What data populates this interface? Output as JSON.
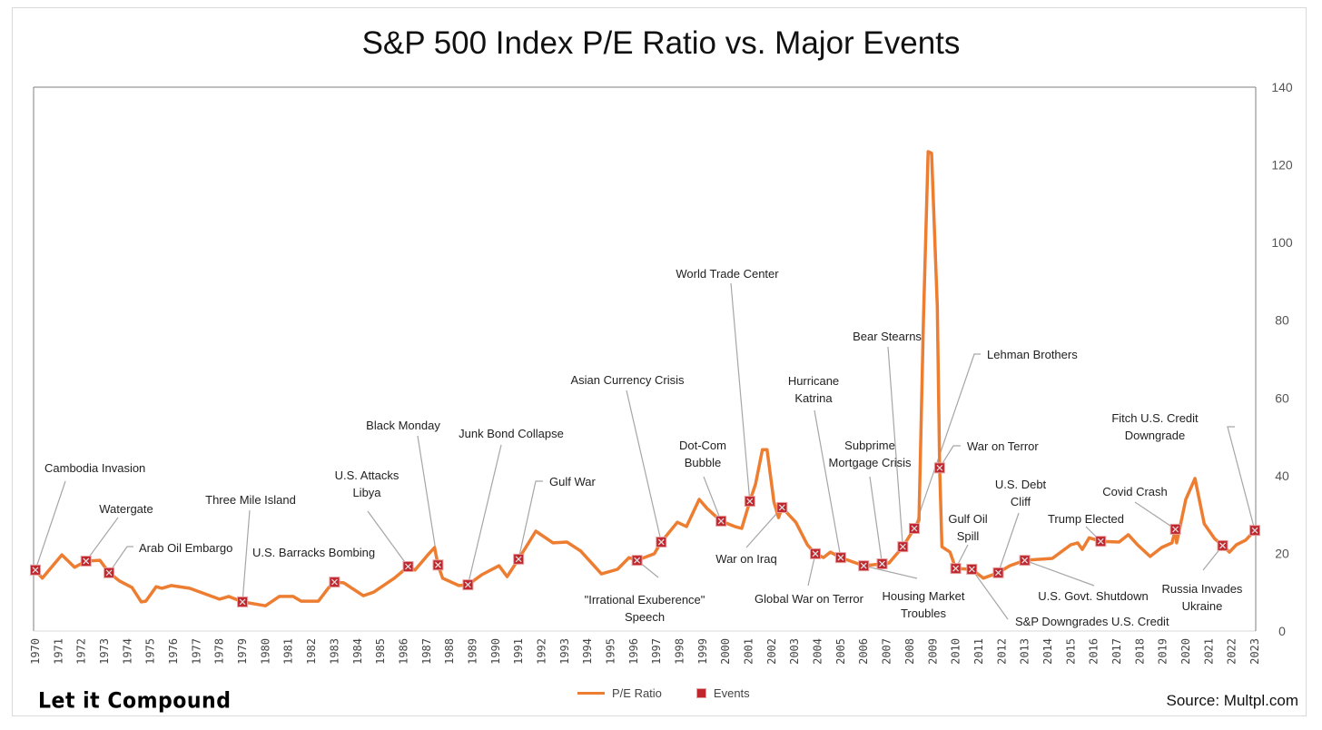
{
  "chart_data": {
    "type": "line",
    "title": "S&P 500 Index P/E Ratio vs. Major Events",
    "xlabel": "",
    "ylabel": "",
    "ylim": [
      0,
      140
    ],
    "yticks": [
      0,
      20,
      40,
      60,
      80,
      100,
      120,
      140
    ],
    "y_axis_side": "right",
    "x_tick_labels": [
      "1970",
      "1971",
      "1972",
      "1973",
      "1974",
      "1975",
      "1976",
      "1977",
      "1978",
      "1979",
      "1980",
      "1981",
      "1982",
      "1983",
      "1984",
      "1985",
      "1986",
      "1987",
      "1988",
      "1989",
      "1990",
      "1991",
      "1992",
      "1993",
      "1994",
      "1995",
      "1996",
      "1997",
      "1998",
      "1999",
      "2000",
      "2001",
      "2002",
      "2003",
      "2004",
      "2005",
      "2006",
      "2007",
      "2008",
      "2009",
      "2010",
      "2011",
      "2012",
      "2013",
      "2014",
      "2015",
      "2016",
      "2017",
      "2018",
      "2019",
      "2020",
      "2021",
      "2022",
      "2023"
    ],
    "legend": {
      "placement": "bottom",
      "entries": [
        "P/E Ratio",
        "Events"
      ]
    },
    "series": [
      {
        "name": "P/E Ratio",
        "color": "#ed7d31",
        "x": [
          1970.0,
          1970.3,
          1971.15,
          1971.7,
          1972.2,
          1972.8,
          1973.2,
          1973.65,
          1974.2,
          1974.6,
          1974.8,
          1975.25,
          1975.5,
          1975.9,
          1976.7,
          1978.0,
          1978.4,
          1979.0,
          1980.0,
          1980.6,
          1981.2,
          1981.55,
          1982.3,
          1982.75,
          1983.0,
          1983.4,
          1984.25,
          1984.7,
          1985.6,
          1986.2,
          1986.5,
          1987.1,
          1987.35,
          1987.5,
          1987.7,
          1988.4,
          1988.8,
          1989.4,
          1990.15,
          1990.5,
          1991.0,
          1991.75,
          1992.5,
          1993.1,
          1993.7,
          1994.6,
          1995.3,
          1995.8,
          1996.15,
          1996.9,
          1997.2,
          1997.9,
          1998.3,
          1998.85,
          1999.2,
          1999.8,
          2000.4,
          2000.7,
          2001.05,
          2001.3,
          2001.6,
          2001.8,
          2002.1,
          2002.3,
          2002.45,
          2003.05,
          2003.55,
          2003.9,
          2004.25,
          2004.55,
          2005.0,
          2006.0,
          2006.8,
          2007.1,
          2007.7,
          2008.2,
          2008.4,
          2008.6,
          2008.8,
          2008.95,
          2009.2,
          2009.3,
          2009.4,
          2009.75,
          2010.0,
          2010.7,
          2011.2,
          2011.85,
          2012.35,
          2013.0,
          2014.2,
          2015.0,
          2015.3,
          2015.5,
          2015.8,
          2016.3,
          2017.1,
          2017.5,
          2017.9,
          2018.45,
          2018.95,
          2019.4,
          2019.55,
          2019.6,
          2020.0,
          2020.4,
          2020.8,
          2021.25,
          2021.6,
          2021.9,
          2022.2,
          2022.6,
          2023.0
        ],
        "y": [
          15.7,
          13.6,
          19.6,
          16.4,
          18.0,
          18.2,
          15.0,
          12.9,
          11.2,
          7.5,
          7.7,
          11.4,
          11.0,
          11.7,
          11.0,
          8.2,
          8.9,
          7.5,
          6.5,
          8.9,
          8.9,
          7.7,
          7.7,
          11.2,
          12.6,
          12.4,
          9.1,
          10.0,
          13.6,
          16.6,
          15.7,
          19.9,
          21.5,
          17.0,
          13.6,
          11.7,
          11.9,
          14.5,
          16.8,
          14.0,
          18.5,
          25.7,
          22.7,
          22.9,
          20.6,
          14.7,
          15.9,
          18.9,
          18.2,
          19.9,
          22.9,
          28.0,
          26.9,
          33.9,
          31.5,
          28.3,
          26.9,
          26.4,
          33.4,
          37.8,
          46.7,
          46.7,
          33.2,
          29.2,
          31.8,
          28.0,
          22.2,
          19.9,
          18.9,
          20.3,
          18.9,
          16.8,
          17.3,
          17.5,
          21.7,
          26.4,
          28.5,
          80.6,
          123.4,
          123.0,
          83.6,
          42.0,
          21.7,
          20.3,
          16.1,
          15.9,
          13.6,
          15.0,
          16.8,
          18.2,
          18.7,
          22.2,
          22.7,
          21.0,
          24.0,
          23.1,
          22.9,
          24.8,
          22.2,
          19.2,
          21.5,
          22.7,
          26.2,
          22.7,
          33.9,
          39.3,
          27.6,
          23.8,
          22.0,
          20.3,
          22.2,
          23.4,
          25.9
        ]
      }
    ],
    "events_color": "#c0262d",
    "events": [
      {
        "label": [
          "Cambodia Invasion"
        ],
        "year": 1970.0,
        "pe": 15.7
      },
      {
        "label": [
          "Watergate"
        ],
        "year": 1972.2,
        "pe": 18.0
      },
      {
        "label": [
          "Arab Oil Embargo"
        ],
        "year": 1973.2,
        "pe": 15.0
      },
      {
        "label": [
          "Three Mile Island"
        ],
        "year": 1979.0,
        "pe": 7.5
      },
      {
        "label": [
          "U.S. Barracks Bombing"
        ],
        "year": 1983.0,
        "pe": 12.6
      },
      {
        "label": [
          "U.S. Attacks",
          "Libya"
        ],
        "year": 1986.2,
        "pe": 16.6
      },
      {
        "label": [
          "Black Monday"
        ],
        "year": 1987.5,
        "pe": 17.0
      },
      {
        "label": [
          "Junk Bond Collapse"
        ],
        "year": 1988.8,
        "pe": 11.9
      },
      {
        "label": [
          "Gulf War"
        ],
        "year": 1991.0,
        "pe": 18.5
      },
      {
        "label": [
          "Asian Currency Crisis"
        ],
        "year": 1997.2,
        "pe": 22.9
      },
      {
        "label": [
          "\"Irrational Exuberence\"",
          "Speech"
        ],
        "year": 1996.15,
        "pe": 18.2
      },
      {
        "label": [
          "Dot-Com",
          "Bubble"
        ],
        "year": 1999.8,
        "pe": 28.3
      },
      {
        "label": [
          "World Trade Center"
        ],
        "year": 2001.05,
        "pe": 33.4
      },
      {
        "label": [
          "War on Iraq"
        ],
        "year": 2002.45,
        "pe": 31.8
      },
      {
        "label": [
          "Global War on Terror"
        ],
        "year": 2003.9,
        "pe": 19.9
      },
      {
        "label": [
          "Hurricane",
          "Katrina"
        ],
        "year": 2005.0,
        "pe": 18.9
      },
      {
        "label": [
          "Housing Market",
          "Troubles"
        ],
        "year": 2006.0,
        "pe": 16.8
      },
      {
        "label": [
          "Subprime",
          "Mortgage Crisis"
        ],
        "year": 2006.8,
        "pe": 17.3
      },
      {
        "label": [
          "Bear Stearns"
        ],
        "year": 2007.7,
        "pe": 21.7
      },
      {
        "label": [
          "Lehman Brothers"
        ],
        "year": 2008.2,
        "pe": 26.4
      },
      {
        "label": [
          "War on Terror"
        ],
        "year": 2009.3,
        "pe": 42.0
      },
      {
        "label": [
          "Gulf Oil",
          "Spill"
        ],
        "year": 2010.0,
        "pe": 16.1
      },
      {
        "label": [
          "S&P Downgrades U.S. Credit"
        ],
        "year": 2010.7,
        "pe": 15.9
      },
      {
        "label": [
          "U.S. Debt",
          "Cliff"
        ],
        "year": 2011.85,
        "pe": 15.0
      },
      {
        "label": [
          "U.S. Govt. Shutdown"
        ],
        "year": 2013.0,
        "pe": 18.2
      },
      {
        "label": [
          "Trump Elected"
        ],
        "year": 2016.3,
        "pe": 23.1
      },
      {
        "label": [
          "Covid Crash"
        ],
        "year": 2019.55,
        "pe": 26.2
      },
      {
        "label": [
          "Russia Invades",
          "Ukraine"
        ],
        "year": 2021.6,
        "pe": 22.0
      },
      {
        "label": [
          "Fitch U.S. Credit",
          "Downgrade"
        ],
        "year": 2023.0,
        "pe": 25.9
      }
    ]
  },
  "footer": {
    "brand": "Let it Compound",
    "source": "Source: Multpl.com"
  }
}
